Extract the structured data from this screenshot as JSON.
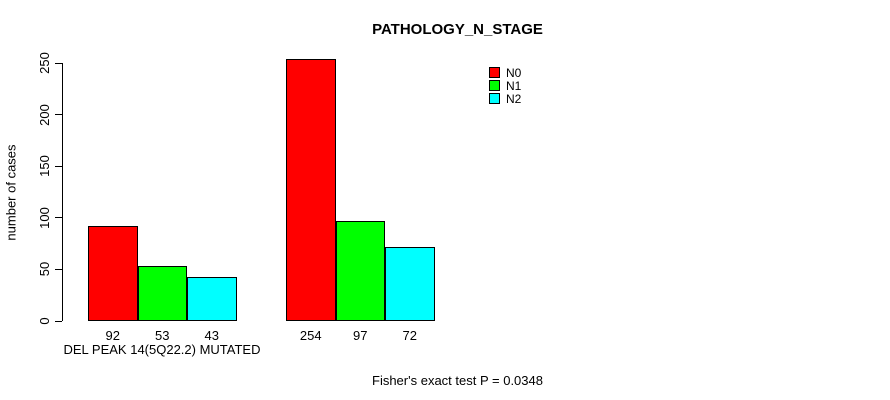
{
  "chart_data": {
    "type": "bar",
    "title": "PATHOLOGY_N_STAGE",
    "ylabel": "number of cases",
    "xlabel": "",
    "ylim": [
      0,
      250
    ],
    "yticks": [
      0,
      50,
      100,
      150,
      200,
      250
    ],
    "grid": false,
    "legend_position": "top-right",
    "categories": [
      "DEL PEAK 14(5Q22.2) MUTATED",
      ""
    ],
    "series": [
      {
        "name": "N0",
        "color": "#FF0000",
        "values": [
          92,
          254
        ]
      },
      {
        "name": "N1",
        "color": "#00FF00",
        "values": [
          53,
          97
        ]
      },
      {
        "name": "N2",
        "color": "#00FFFF",
        "values": [
          43,
          72
        ]
      }
    ],
    "annotation": "Fisher's exact test P = 0.0348",
    "bar_border_color": "#000000",
    "background_color": "#FFFFFF"
  }
}
